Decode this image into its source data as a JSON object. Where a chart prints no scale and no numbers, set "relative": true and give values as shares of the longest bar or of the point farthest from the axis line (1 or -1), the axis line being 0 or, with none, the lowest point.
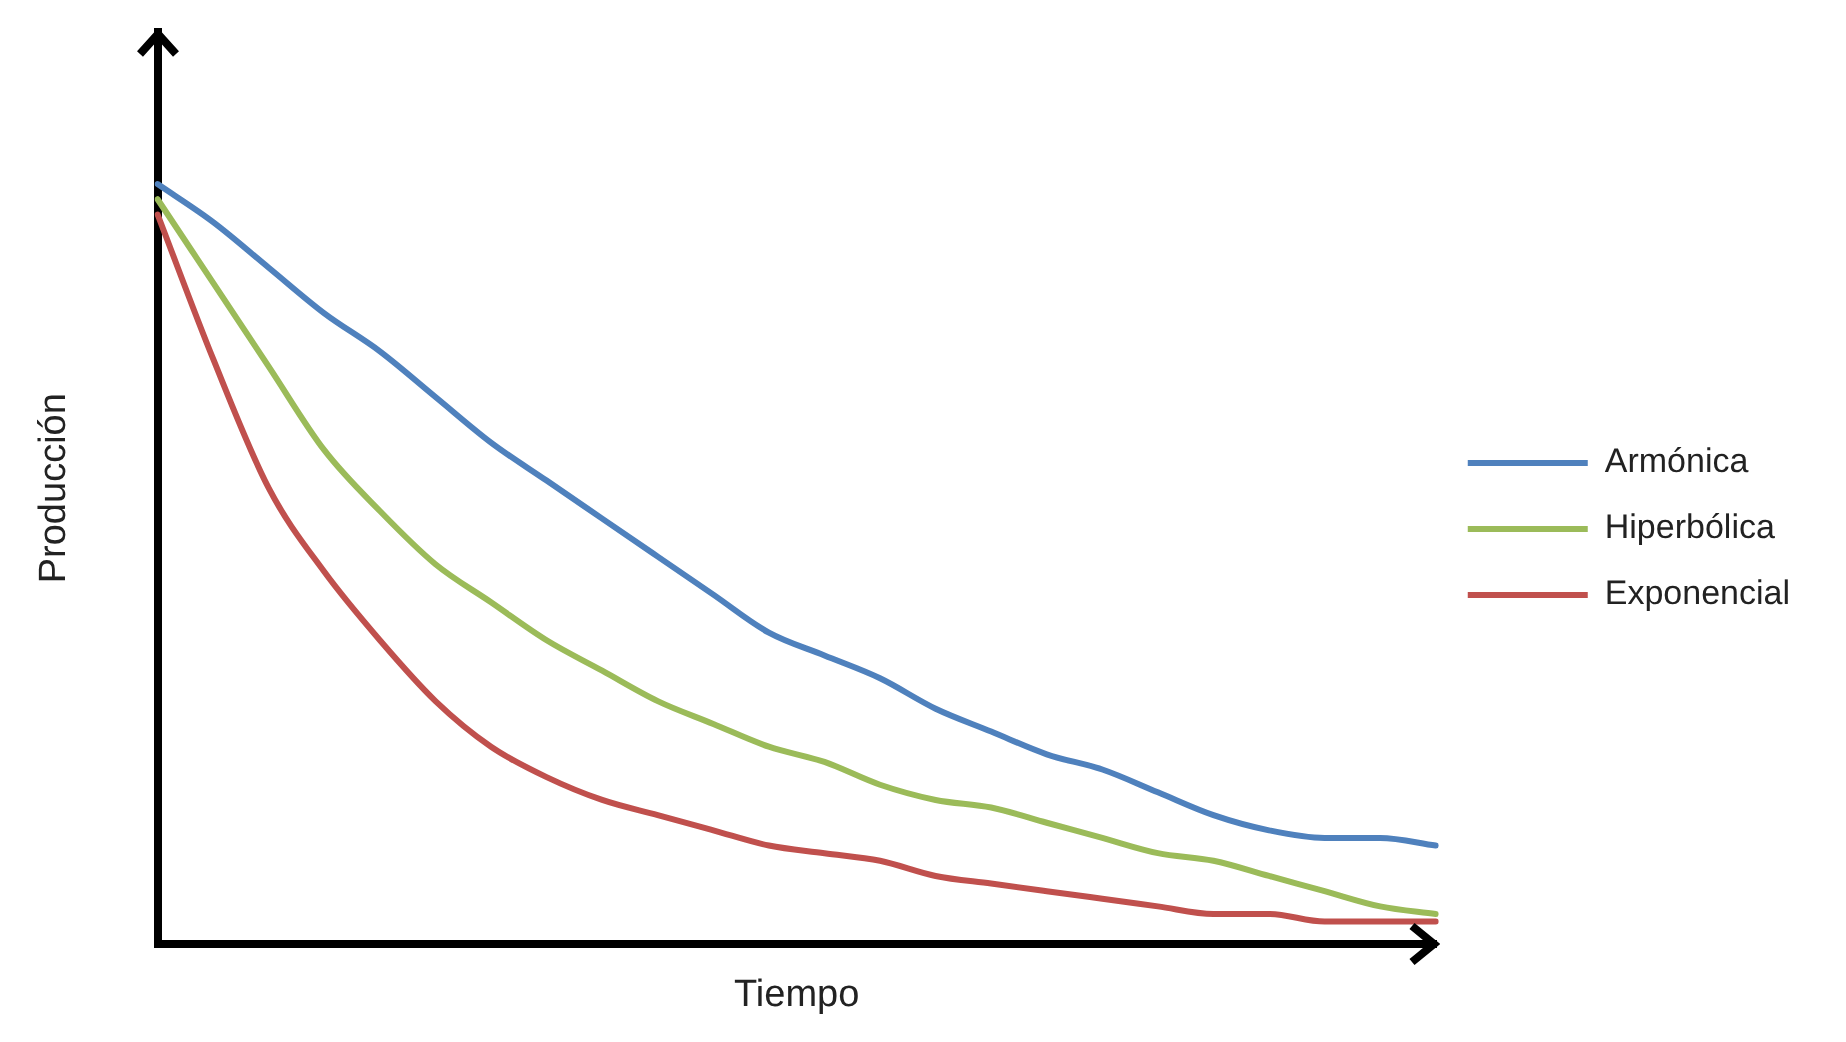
{
  "chart_data": {
    "type": "line",
    "relative": true,
    "xlabel": "Tiempo",
    "ylabel": "Producción",
    "legend": "right",
    "grid": false,
    "marker": "none",
    "line_style": "solid",
    "categories": [
      null,
      null,
      null,
      null,
      null,
      null,
      null,
      null,
      null,
      null,
      null,
      null,
      null,
      null,
      null,
      null,
      null,
      null,
      null,
      null,
      null,
      null,
      null,
      null
    ],
    "series": [
      {
        "name": "Armónica",
        "color": "#4f81bd",
        "values": [
          1,
          0.95,
          0.89,
          0.83,
          0.78,
          0.72,
          0.66,
          0.61,
          0.56,
          0.51,
          0.46,
          0.41,
          0.38,
          0.35,
          0.31,
          0.28,
          0.25,
          0.23,
          0.2,
          0.17,
          0.15,
          0.14,
          0.14,
          0.13
        ]
      },
      {
        "name": "Hiperbólica",
        "color": "#9bbb59",
        "values": [
          0.98,
          0.87,
          0.76,
          0.65,
          0.57,
          0.5,
          0.45,
          0.4,
          0.36,
          0.32,
          0.29,
          0.26,
          0.24,
          0.21,
          0.19,
          0.18,
          0.16,
          0.14,
          0.12,
          0.11,
          0.09,
          0.07,
          0.05,
          0.04
        ]
      },
      {
        "name": "Exponencial",
        "color": "#c0504d",
        "values": [
          0.96,
          0.77,
          0.6,
          0.49,
          0.4,
          0.32,
          0.26,
          0.22,
          0.19,
          0.17,
          0.15,
          0.13,
          0.12,
          0.11,
          0.09,
          0.08,
          0.07,
          0.06,
          0.05,
          0.04,
          0.04,
          0.03,
          0.03,
          0.03
        ]
      }
    ]
  }
}
